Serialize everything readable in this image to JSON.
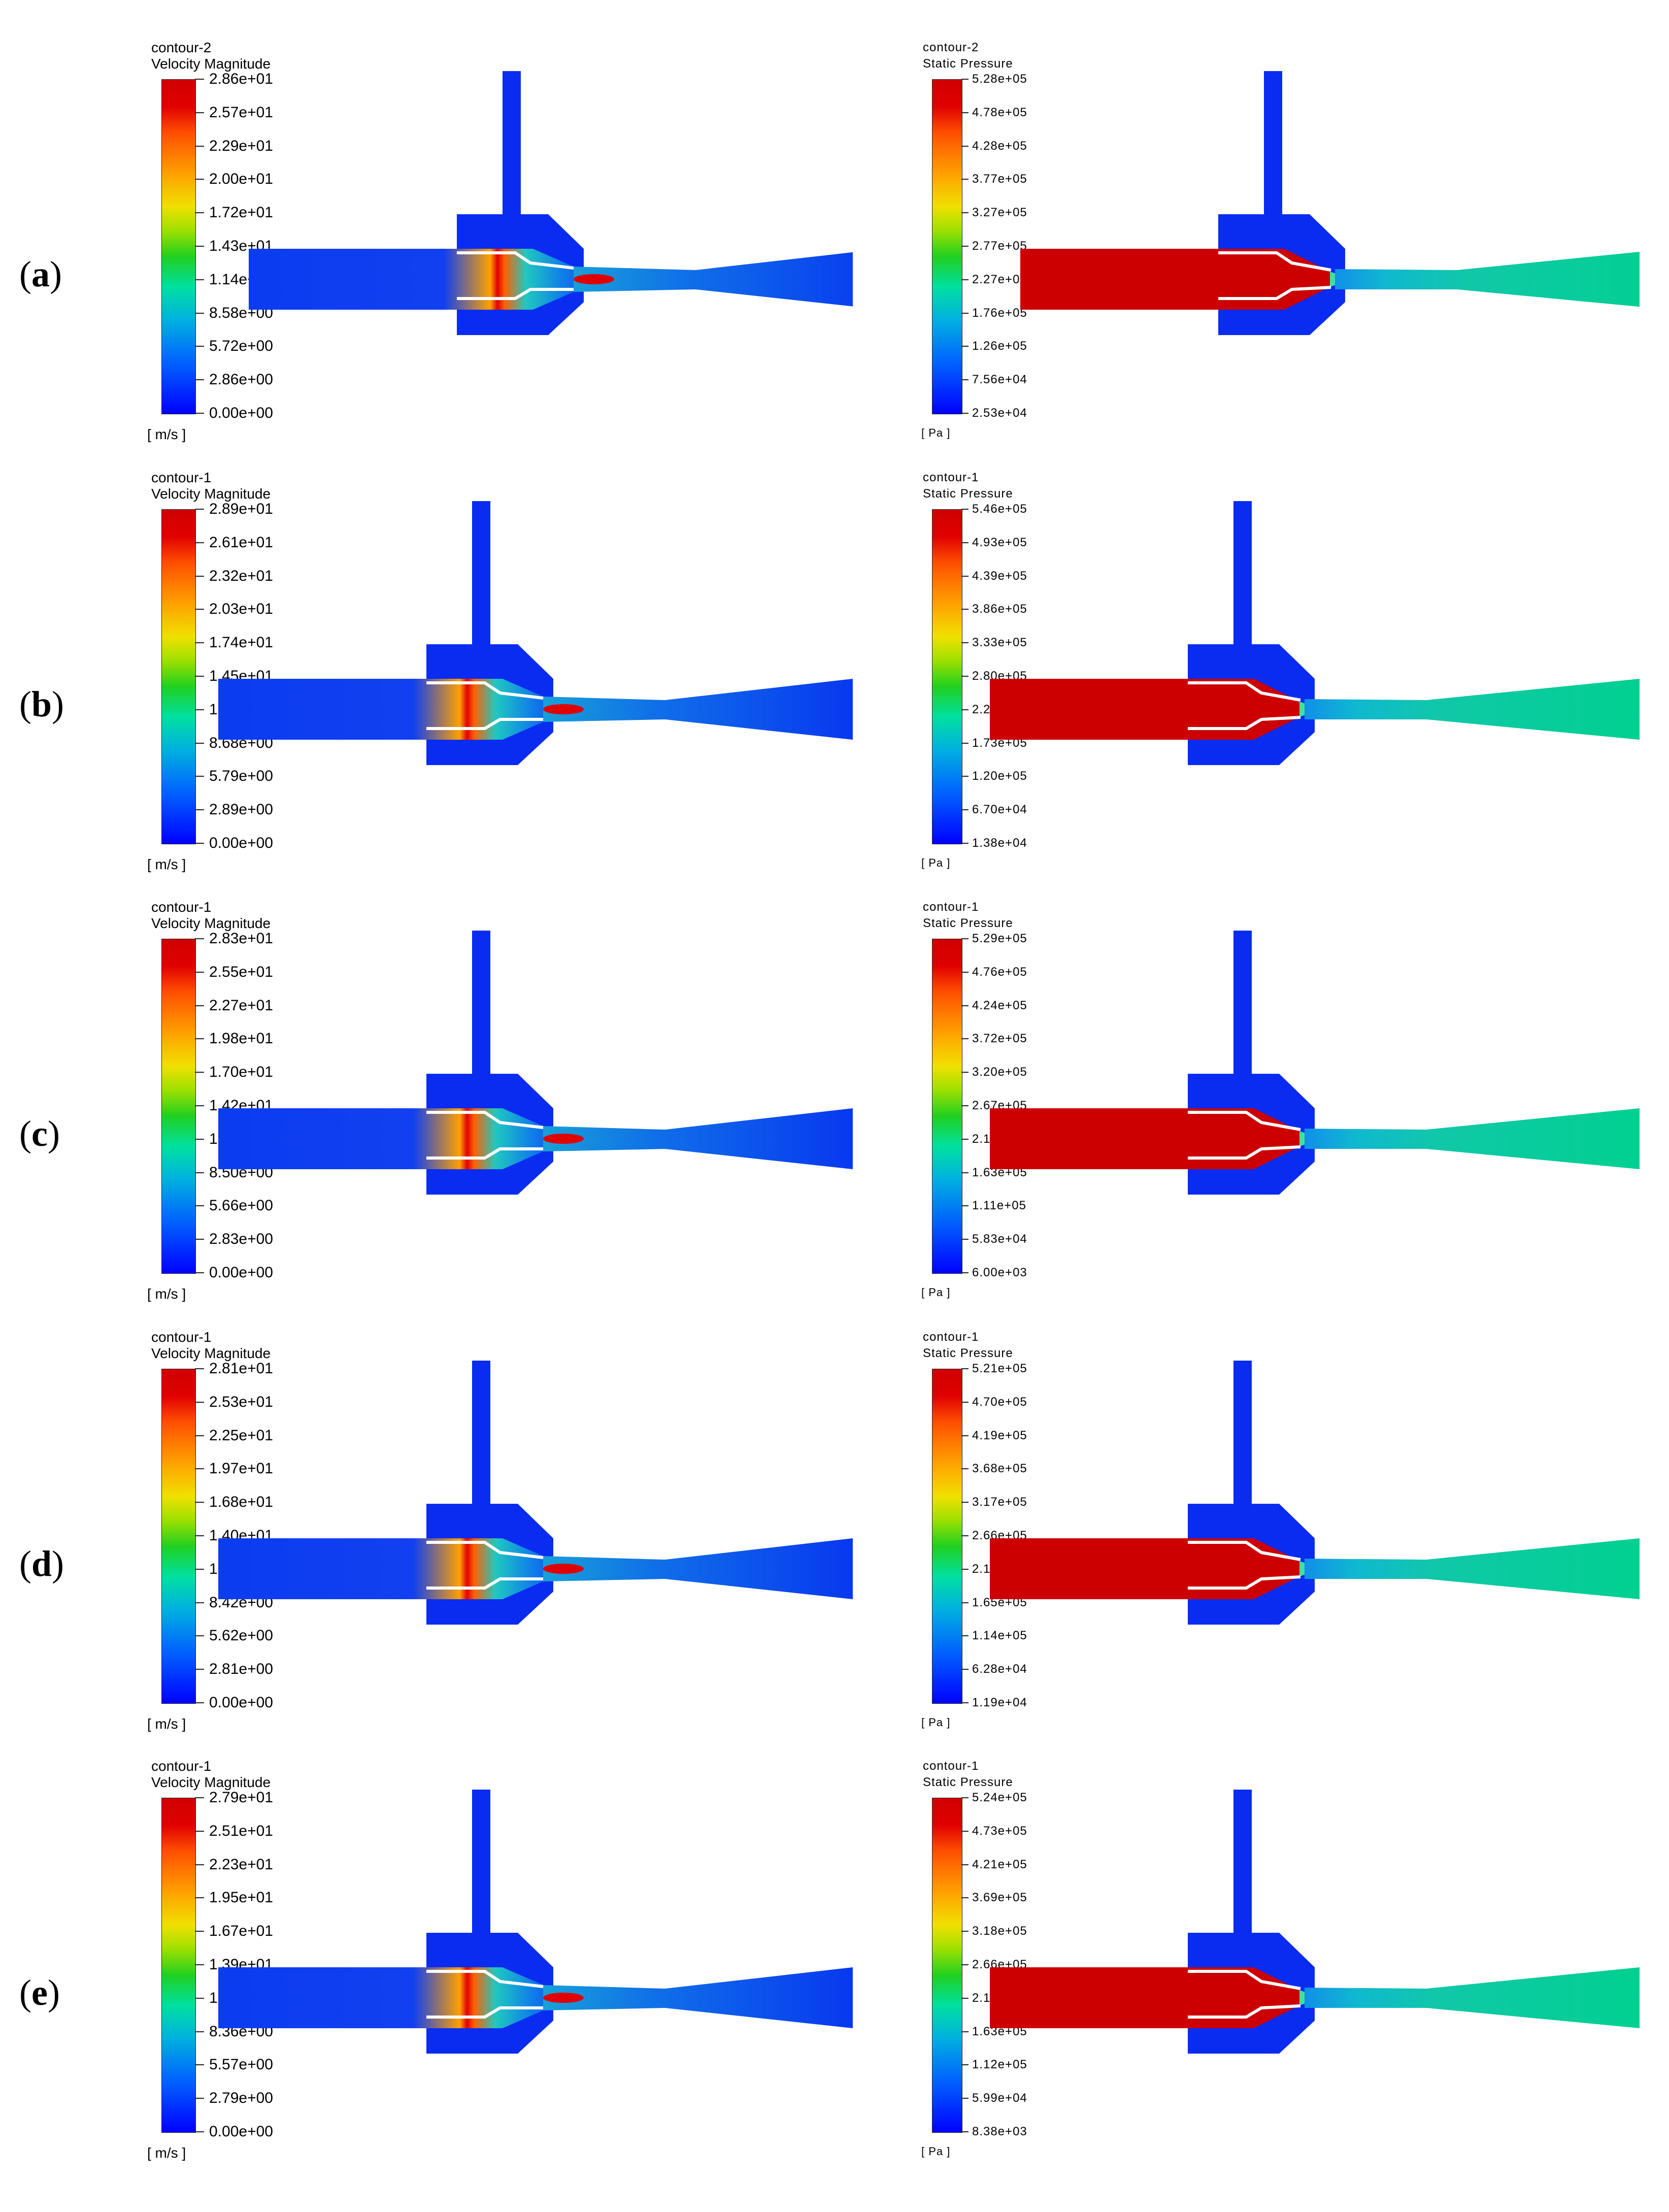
{
  "rows": [
    {
      "label": "a",
      "velocity": {
        "title1": "contour-2",
        "title2": "Velocity Magnitude",
        "unit": "[ m/s ]",
        "ticks": [
          "2.86e+01",
          "2.57e+01",
          "2.29e+01",
          "2.00e+01",
          "1.72e+01",
          "1.43e+01",
          "1.14e+01",
          "8.58e+00",
          "5.72e+00",
          "2.86e+00",
          "0.00e+00"
        ]
      },
      "pressure": {
        "title1": "contour-2",
        "title2": "Static Pressure",
        "unit": "[ Pa ]",
        "ticks": [
          "5.28e+05",
          "4.78e+05",
          "4.28e+05",
          "3.77e+05",
          "3.27e+05",
          "2.77e+05",
          "2.27e+05",
          "1.76e+05",
          "1.26e+05",
          "7.56e+04",
          "2.53e+04"
        ]
      }
    },
    {
      "label": "b",
      "velocity": {
        "title1": "contour-1",
        "title2": "Velocity Magnitude",
        "unit": "[ m/s ]",
        "ticks": [
          "2.89e+01",
          "2.61e+01",
          "2.32e+01",
          "2.03e+01",
          "1.74e+01",
          "1.45e+01",
          "1.16e+01",
          "8.68e+00",
          "5.79e+00",
          "2.89e+00",
          "0.00e+00"
        ]
      },
      "pressure": {
        "title1": "contour-1",
        "title2": "Static Pressure",
        "unit": "[ Pa ]",
        "ticks": [
          "5.46e+05",
          "4.93e+05",
          "4.39e+05",
          "3.86e+05",
          "3.33e+05",
          "2.80e+05",
          "2.27e+05",
          "1.73e+05",
          "1.20e+05",
          "6.70e+04",
          "1.38e+04"
        ]
      }
    },
    {
      "label": "c",
      "velocity": {
        "title1": "contour-1",
        "title2": "Velocity Magnitude",
        "unit": "[ m/s ]",
        "ticks": [
          "2.83e+01",
          "2.55e+01",
          "2.27e+01",
          "1.98e+01",
          "1.70e+01",
          "1.42e+01",
          "1.13e+01",
          "8.50e+00",
          "5.66e+00",
          "2.83e+00",
          "0.00e+00"
        ]
      },
      "pressure": {
        "title1": "contour-1",
        "title2": "Static Pressure",
        "unit": "[ Pa ]",
        "ticks": [
          "5.29e+05",
          "4.76e+05",
          "4.24e+05",
          "3.72e+05",
          "3.20e+05",
          "2.67e+05",
          "2.15e+05",
          "1.63e+05",
          "1.11e+05",
          "5.83e+04",
          "6.00e+03"
        ]
      }
    },
    {
      "label": "d",
      "velocity": {
        "title1": "contour-1",
        "title2": "Velocity Magnitude",
        "unit": "[ m/s ]",
        "ticks": [
          "2.81e+01",
          "2.53e+01",
          "2.25e+01",
          "1.97e+01",
          "1.68e+01",
          "1.40e+01",
          "1.12e+01",
          "8.42e+00",
          "5.62e+00",
          "2.81e+00",
          "0.00e+00"
        ]
      },
      "pressure": {
        "title1": "contour-1",
        "title2": "Static Pressure",
        "unit": "[ Pa ]",
        "ticks": [
          "5.21e+05",
          "4.70e+05",
          "4.19e+05",
          "3.68e+05",
          "3.17e+05",
          "2.66e+05",
          "2.15e+05",
          "1.65e+05",
          "1.14e+05",
          "6.28e+04",
          "1.19e+04"
        ]
      }
    },
    {
      "label": "e",
      "velocity": {
        "title1": "contour-1",
        "title2": "Velocity Magnitude",
        "unit": "[ m/s ]",
        "ticks": [
          "2.79e+01",
          "2.51e+01",
          "2.23e+01",
          "1.95e+01",
          "1.67e+01",
          "1.39e+01",
          "1.11e+01",
          "8.36e+00",
          "5.57e+00",
          "2.79e+00",
          "0.00e+00"
        ]
      },
      "pressure": {
        "title1": "contour-1",
        "title2": "Static Pressure",
        "unit": "[ Pa ]",
        "ticks": [
          "5.24e+05",
          "4.73e+05",
          "4.21e+05",
          "3.69e+05",
          "3.18e+05",
          "2.66e+05",
          "2.15e+05",
          "1.63e+05",
          "1.12e+05",
          "5.99e+04",
          "8.38e+03"
        ]
      }
    }
  ]
}
